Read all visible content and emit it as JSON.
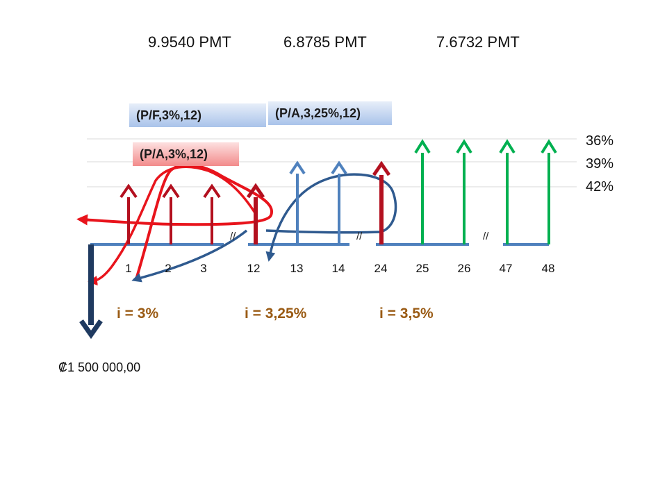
{
  "pmt_labels": [
    "9.9540 PMT",
    "6.8785 PMT",
    "7.6732 PMT"
  ],
  "factor_boxes": {
    "pf": "(P/F,3%,12)",
    "pa_325": "(P/A,3,25%,12)",
    "pa_3": "(P/A,3%,12)"
  },
  "percent_labels": [
    "36%",
    "39%",
    "42%"
  ],
  "period_labels": [
    "1",
    "2",
    "3",
    "12",
    "13",
    "14",
    "24",
    "25",
    "26",
    "47",
    "48"
  ],
  "break_marks": [
    "//",
    "//",
    "//"
  ],
  "interest_rates": [
    "i = 3%",
    "i = 3,25%",
    "i = 3,5%"
  ],
  "present_value": "₡1 500 000,00",
  "colors": {
    "red_arrow": "#b3101f",
    "blue_arrow": "#4f81bd",
    "green_arrow": "#00b050",
    "timeline": "#4f81bd",
    "down_arrow": "#1f3a60",
    "rate_text": "#9a5b14"
  }
}
